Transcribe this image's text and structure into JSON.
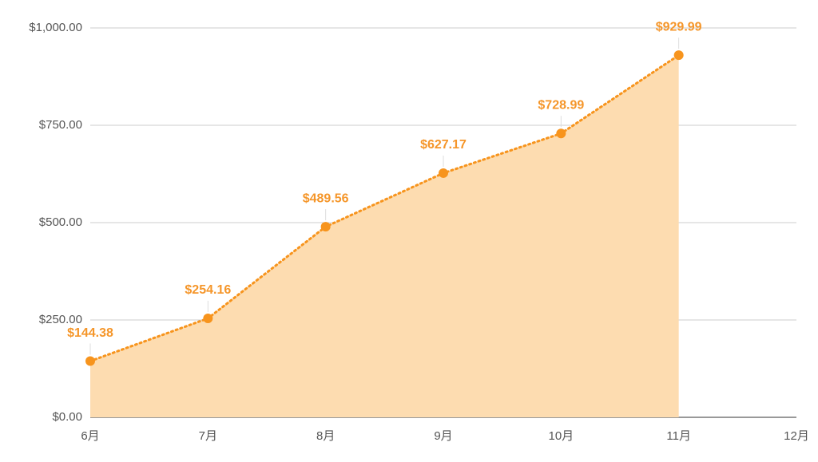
{
  "chart_data": {
    "type": "area",
    "categories": [
      "6月",
      "7月",
      "8月",
      "9月",
      "10月",
      "11月",
      "12月"
    ],
    "series": [
      {
        "color": "#f7941d",
        "fill": "#fddcb0",
        "values": [
          144.38,
          254.16,
          489.56,
          627.17,
          728.99,
          929.99,
          null
        ],
        "value_labels": [
          "$144.38",
          "$254.16",
          "$489.56",
          "$627.17",
          "$728.99",
          "$929.99",
          null
        ]
      }
    ],
    "ylim": [
      0,
      1000
    ],
    "yticks": [
      {
        "value": 0,
        "label": "$0.00"
      },
      {
        "value": 250,
        "label": "$250.00"
      },
      {
        "value": 500,
        "label": "$500.00"
      },
      {
        "value": 750,
        "label": "$750.00"
      },
      {
        "value": 1000,
        "label": "$1,000.00"
      }
    ],
    "grid": true
  }
}
